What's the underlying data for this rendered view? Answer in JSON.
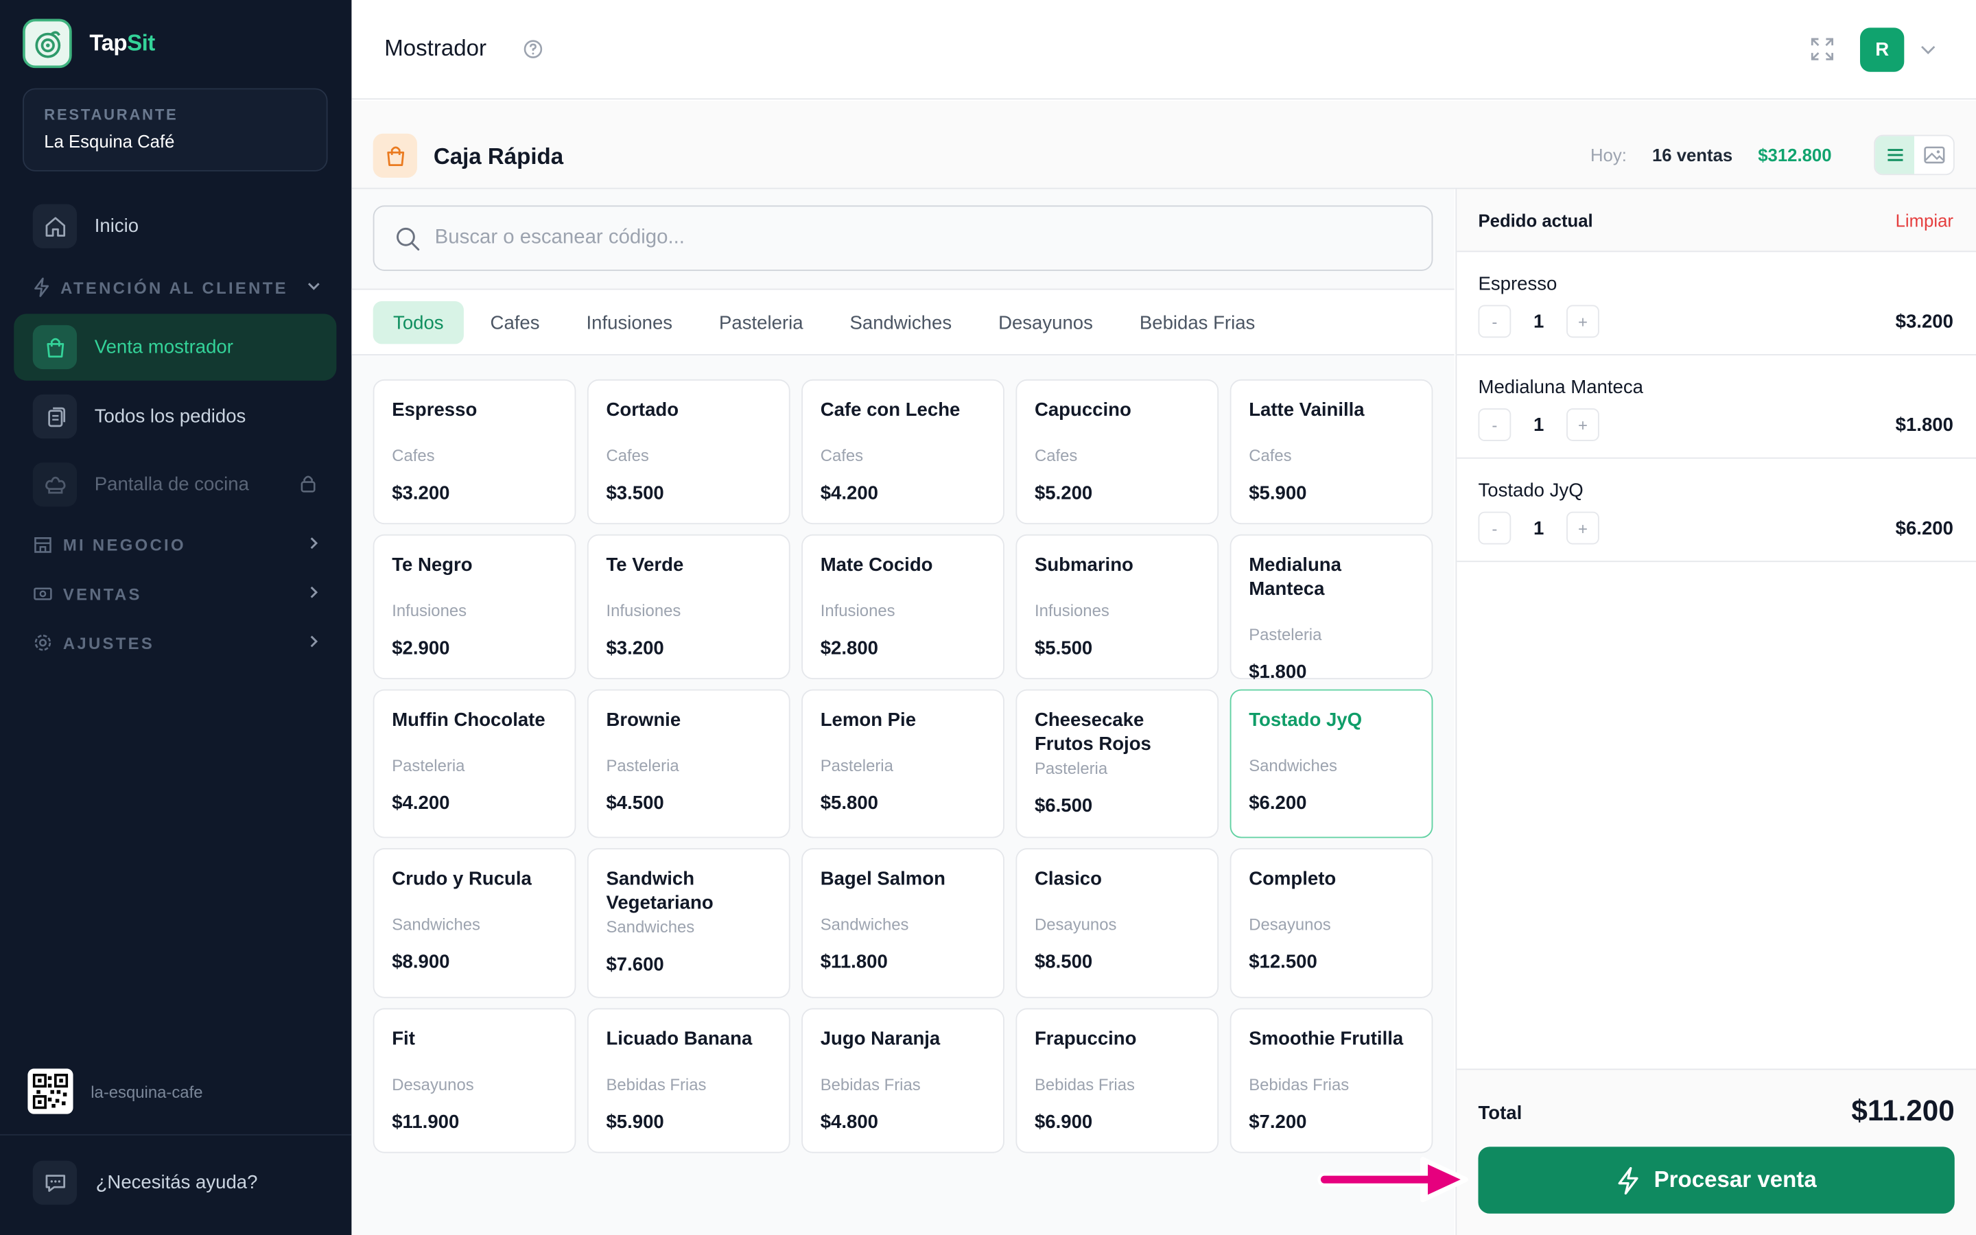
{
  "brand": {
    "name_part1": "Tap",
    "name_part2": "Sit"
  },
  "restaurant": {
    "label": "RESTAURANTE",
    "name": "La Esquina Café"
  },
  "sidebar": {
    "inicio": "Inicio",
    "section_atencion": "ATENCIÓN AL CLIENTE",
    "venta_mostrador": "Venta mostrador",
    "todos_pedidos": "Todos los pedidos",
    "pantalla_cocina": "Pantalla de cocina",
    "section_negocio": "MI NEGOCIO",
    "section_ventas": "VENTAS",
    "section_ajustes": "AJUSTES",
    "slug": "la-esquina-cafe",
    "help": "¿Necesitás ayuda?"
  },
  "topbar": {
    "title": "Mostrador",
    "avatar_initial": "R"
  },
  "subbar": {
    "title": "Caja Rápida",
    "today_label": "Hoy:",
    "sales_count": "16 ventas",
    "sales_total": "$312.800"
  },
  "search": {
    "placeholder": "Buscar o escanear código...",
    "value": ""
  },
  "tabs": [
    "Todos",
    "Cafes",
    "Infusiones",
    "Pasteleria",
    "Sandwiches",
    "Desayunos",
    "Bebidas Frias"
  ],
  "active_tab": "Todos",
  "products": [
    {
      "name": "Espresso",
      "category": "Cafes",
      "price": "$3.200"
    },
    {
      "name": "Cortado",
      "category": "Cafes",
      "price": "$3.500"
    },
    {
      "name": "Cafe con Leche",
      "category": "Cafes",
      "price": "$4.200"
    },
    {
      "name": "Capuccino",
      "category": "Cafes",
      "price": "$5.200"
    },
    {
      "name": "Latte Vainilla",
      "category": "Cafes",
      "price": "$5.900"
    },
    {
      "name": "Te Negro",
      "category": "Infusiones",
      "price": "$2.900"
    },
    {
      "name": "Te Verde",
      "category": "Infusiones",
      "price": "$3.200"
    },
    {
      "name": "Mate Cocido",
      "category": "Infusiones",
      "price": "$2.800"
    },
    {
      "name": "Submarino",
      "category": "Infusiones",
      "price": "$5.500"
    },
    {
      "name": "Medialuna Manteca",
      "category": "Pasteleria",
      "price": "$1.800"
    },
    {
      "name": "Muffin Chocolate",
      "category": "Pasteleria",
      "price": "$4.200"
    },
    {
      "name": "Brownie",
      "category": "Pasteleria",
      "price": "$4.500"
    },
    {
      "name": "Lemon Pie",
      "category": "Pasteleria",
      "price": "$5.800"
    },
    {
      "name": "Cheesecake Frutos Rojos",
      "category": "Pasteleria",
      "price": "$6.500"
    },
    {
      "name": "Tostado JyQ",
      "category": "Sandwiches",
      "price": "$6.200",
      "selected": true
    },
    {
      "name": "Crudo y Rucula",
      "category": "Sandwiches",
      "price": "$8.900"
    },
    {
      "name": "Sandwich Vegetariano",
      "category": "Sandwiches",
      "price": "$7.600"
    },
    {
      "name": "Bagel Salmon",
      "category": "Sandwiches",
      "price": "$11.800"
    },
    {
      "name": "Clasico",
      "category": "Desayunos",
      "price": "$8.500"
    },
    {
      "name": "Completo",
      "category": "Desayunos",
      "price": "$12.500"
    },
    {
      "name": "Fit",
      "category": "Desayunos",
      "price": "$11.900"
    },
    {
      "name": "Licuado Banana",
      "category": "Bebidas Frias",
      "price": "$5.900"
    },
    {
      "name": "Jugo Naranja",
      "category": "Bebidas Frias",
      "price": "$4.800"
    },
    {
      "name": "Frapuccino",
      "category": "Bebidas Frias",
      "price": "$6.900"
    },
    {
      "name": "Smoothie Frutilla",
      "category": "Bebidas Frias",
      "price": "$7.200"
    }
  ],
  "order": {
    "title": "Pedido actual",
    "clear_label": "Limpiar",
    "items": [
      {
        "name": "Espresso",
        "qty": "1",
        "price": "$3.200"
      },
      {
        "name": "Medialuna Manteca",
        "qty": "1",
        "price": "$1.800"
      },
      {
        "name": "Tostado JyQ",
        "qty": "1",
        "price": "$6.200"
      }
    ],
    "minus": "-",
    "plus": "+",
    "total_label": "Total",
    "total_value": "$11.200",
    "process_label": "Procesar venta"
  },
  "colors": {
    "sidebar_bg": "#0f1829",
    "accent": "#10a36e",
    "button": "#0f8a60",
    "danger": "#e53e3e",
    "arrow": "#e6007e"
  }
}
